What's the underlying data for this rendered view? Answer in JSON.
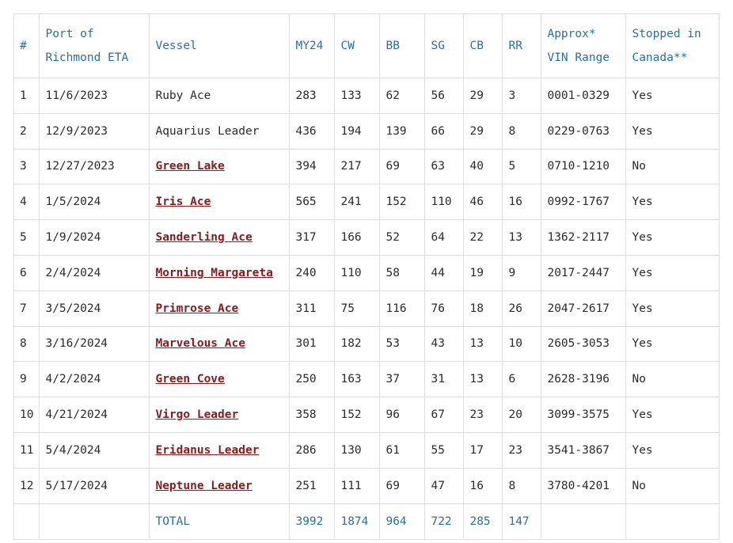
{
  "headers": {
    "num": "#",
    "eta_line1": "Port of",
    "eta_line2": "Richmond ETA",
    "vessel": "Vessel",
    "my24": "MY24",
    "cw": "CW",
    "bb": "BB",
    "sg": "SG",
    "cb": "CB",
    "rr": "RR",
    "vin_line1": "Approx*",
    "vin_line2": "VIN Range",
    "stop_line1": "Stopped in",
    "stop_line2": "Canada**"
  },
  "rows": [
    {
      "num": "1",
      "eta": "11/6/2023",
      "vessel": "Ruby Ace",
      "link": false,
      "my24": "283",
      "cw": "133",
      "bb": "62",
      "sg": "56",
      "cb": "29",
      "rr": "3",
      "vin": "0001-0329",
      "stopped": "Yes"
    },
    {
      "num": "2",
      "eta": "12/9/2023",
      "vessel": "Aquarius Leader",
      "link": false,
      "my24": "436",
      "cw": "194",
      "bb": "139",
      "sg": "66",
      "cb": "29",
      "rr": "8",
      "vin": "0229-0763",
      "stopped": "Yes"
    },
    {
      "num": "3",
      "eta": "12/27/2023",
      "vessel": "Green Lake",
      "link": true,
      "my24": "394",
      "cw": "217",
      "bb": "69",
      "sg": "63",
      "cb": "40",
      "rr": "5",
      "vin": "0710-1210",
      "stopped": "No"
    },
    {
      "num": "4",
      "eta": "1/5/2024",
      "vessel": "Iris Ace",
      "link": true,
      "my24": "565",
      "cw": "241",
      "bb": "152",
      "sg": "110",
      "cb": "46",
      "rr": "16",
      "vin": "0992-1767",
      "stopped": "Yes"
    },
    {
      "num": "5",
      "eta": "1/9/2024",
      "vessel": "Sanderling Ace",
      "link": true,
      "my24": "317",
      "cw": "166",
      "bb": "52",
      "sg": "64",
      "cb": "22",
      "rr": "13",
      "vin": "1362-2117",
      "stopped": "Yes"
    },
    {
      "num": "6",
      "eta": "2/4/2024",
      "vessel": "Morning Margareta",
      "link": true,
      "my24": "240",
      "cw": "110",
      "bb": "58",
      "sg": "44",
      "cb": "19",
      "rr": "9",
      "vin": "2017-2447",
      "stopped": "Yes"
    },
    {
      "num": "7",
      "eta": "3/5/2024",
      "vessel": "Primrose Ace",
      "link": true,
      "my24": "311",
      "cw": "75",
      "bb": "116",
      "sg": "76",
      "cb": "18",
      "rr": "26",
      "vin": "2047-2617",
      "stopped": "Yes"
    },
    {
      "num": "8",
      "eta": "3/16/2024",
      "vessel": "Marvelous Ace",
      "link": true,
      "my24": "301",
      "cw": "182",
      "bb": "53",
      "sg": "43",
      "cb": "13",
      "rr": "10",
      "vin": "2605-3053",
      "stopped": "Yes"
    },
    {
      "num": "9",
      "eta": "4/2/2024",
      "vessel": "Green Cove",
      "link": true,
      "my24": "250",
      "cw": "163",
      "bb": "37",
      "sg": "31",
      "cb": "13",
      "rr": "6",
      "vin": "2628-3196",
      "stopped": "No"
    },
    {
      "num": "10",
      "eta": "4/21/2024",
      "vessel": "Virgo Leader",
      "link": true,
      "my24": "358",
      "cw": "152",
      "bb": "96",
      "sg": "67",
      "cb": "23",
      "rr": "20",
      "vin": "3099-3575",
      "stopped": "Yes"
    },
    {
      "num": "11",
      "eta": "5/4/2024",
      "vessel": "Eridanus Leader",
      "link": true,
      "my24": "286",
      "cw": "130",
      "bb": "61",
      "sg": "55",
      "cb": "17",
      "rr": "23",
      "vin": "3541-3867",
      "stopped": "Yes"
    },
    {
      "num": "12",
      "eta": "5/17/2024",
      "vessel": "Neptune Leader",
      "link": true,
      "my24": "251",
      "cw": "111",
      "bb": "69",
      "sg": "47",
      "cb": "16",
      "rr": "8",
      "vin": "3780-4201",
      "stopped": "No"
    }
  ],
  "total": {
    "label": "TOTAL",
    "my24": "3992",
    "cw": "1874",
    "bb": "964",
    "sg": "722",
    "cb": "285",
    "rr": "147"
  },
  "colors": {
    "header_text": "#2a6fa0",
    "link_text": "#8b1a1a",
    "border": "#dcdcdc"
  }
}
